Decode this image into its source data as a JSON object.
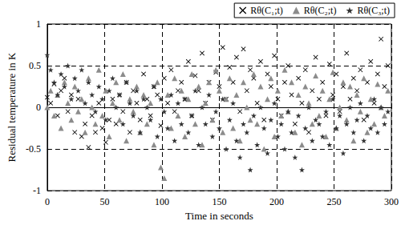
{
  "chart_data": {
    "type": "scatter",
    "x_label": "Time in seconds",
    "y_label": "Residual temperature in K",
    "xlim": [
      0,
      300
    ],
    "xticks": [
      0,
      50,
      100,
      150,
      200,
      250,
      300
    ],
    "ylim": [
      -1,
      1
    ],
    "yticks": [
      -1,
      -0.5,
      0,
      0.5,
      1
    ],
    "grid": true,
    "legend": "top right",
    "x": [
      0,
      3,
      6,
      9,
      12,
      15,
      18,
      21,
      24,
      27,
      30,
      33,
      36,
      39,
      42,
      45,
      48,
      51,
      54,
      57,
      60,
      63,
      66,
      69,
      72,
      75,
      78,
      81,
      84,
      87,
      90,
      93,
      96,
      99,
      102,
      105,
      108,
      111,
      114,
      117,
      120,
      123,
      126,
      129,
      132,
      135,
      138,
      141,
      144,
      147,
      150,
      153,
      156,
      159,
      162,
      165,
      168,
      171,
      174,
      177,
      180,
      183,
      186,
      189,
      192,
      195,
      198,
      201,
      204,
      207,
      210,
      213,
      216,
      219,
      222,
      225,
      228,
      231,
      234,
      237,
      240,
      243,
      246,
      249,
      252,
      255,
      258,
      261,
      264,
      267,
      270,
      273,
      276,
      279,
      282,
      285,
      288,
      291,
      294,
      297
    ],
    "series": [
      {
        "name": "Rθ(C₁;t)",
        "color": "#000000",
        "marker": "x",
        "values": [
          0.12,
          0.05,
          0.28,
          -0.1,
          0.2,
          0.35,
          -0.05,
          0.15,
          -0.3,
          0.1,
          -0.35,
          -0.2,
          -0.48,
          -0.1,
          -0.3,
          0.05,
          -0.25,
          -0.42,
          -0.15,
          0.1,
          -0.2,
          0.15,
          -0.05,
          0.3,
          -0.3,
          0.2,
          0.05,
          -0.15,
          0.4,
          0.1,
          -0.1,
          0.25,
          0.15,
          -0.22,
          0.35,
          0.05,
          0.45,
          -0.05,
          0.2,
          0.3,
          0.1,
          0.55,
          -0.1,
          0.38,
          0.2,
          0.65,
          0.05,
          0.3,
          -0.15,
          0.42,
          0.25,
          0.72,
          0.1,
          0.48,
          0.3,
          0.6,
          -0.05,
          0.7,
          0.2,
          0.45,
          0.35,
          0.05,
          0.55,
          -0.15,
          0.4,
          0.25,
          0.62,
          0.1,
          -0.1,
          0.3,
          0.5,
          0.15,
          -0.2,
          0.35,
          0.05,
          0.45,
          -0.3,
          0.2,
          0.6,
          0.1,
          0.3,
          -0.1,
          0.52,
          0.15,
          0.4,
          -0.05,
          0.25,
          0.65,
          0.1,
          0.35,
          0.2,
          0.45,
          -0.15,
          0.3,
          0.55,
          0.05,
          0.4,
          0.82,
          0.25,
          0.5
        ]
      },
      {
        "name": "Rθ(C₂;t)",
        "color": "#8c8c8c",
        "marker": "triangle",
        "values": [
          0.0,
          0.2,
          -0.1,
          0.15,
          -0.25,
          0.3,
          0.05,
          -0.15,
          0.25,
          -0.05,
          0.1,
          -0.3,
          0.35,
          0.0,
          -0.2,
          0.45,
          -0.1,
          0.2,
          -0.35,
          0.05,
          0.3,
          -0.15,
          0.4,
          -0.4,
          0.1,
          -0.05,
          0.25,
          -0.3,
          0.15,
          -0.2,
          0.05,
          -0.45,
          0.3,
          -0.72,
          -0.85,
          0.15,
          -0.25,
          0.35,
          -0.1,
          0.2,
          -0.35,
          0.1,
          0.4,
          -0.2,
          0.25,
          -0.45,
          0.05,
          0.3,
          -0.15,
          0.45,
          0.2,
          -0.3,
          0.1,
          0.35,
          -0.25,
          0.15,
          -0.4,
          0.3,
          0.0,
          -0.15,
          0.4,
          -0.2,
          0.25,
          -0.5,
          0.1,
          0.35,
          -0.35,
          0.2,
          -0.1,
          0.45,
          -0.05,
          0.3,
          -0.3,
          0.15,
          -0.45,
          0.25,
          0.05,
          -0.2,
          0.38,
          -0.1,
          0.2,
          -0.35,
          0.1,
          0.42,
          -0.25,
          0.0,
          0.3,
          -0.15,
          0.25,
          -0.4,
          0.15,
          -0.05,
          0.35,
          -0.3,
          0.1,
          -0.2,
          0.28,
          0.0,
          -0.1,
          0.2
        ]
      },
      {
        "name": "Rθ(C₃;t)",
        "color": "#333333",
        "marker": "star",
        "values": [
          0.63,
          0.45,
          0.3,
          0.15,
          0.4,
          0.25,
          0.5,
          0.1,
          0.35,
          0.2,
          0.45,
          0.05,
          0.3,
          0.15,
          -0.05,
          0.25,
          0.1,
          -0.15,
          0.2,
          0.35,
          0.0,
          0.15,
          -0.2,
          0.3,
          0.05,
          -0.1,
          0.2,
          -0.3,
          0.1,
          0.0,
          -0.15,
          0.25,
          -0.35,
          0.1,
          -0.05,
          -0.25,
          0.15,
          -0.4,
          0.05,
          -0.2,
          0.1,
          -0.3,
          -0.1,
          0.2,
          -0.45,
          0.0,
          -0.2,
          0.15,
          -0.35,
          -0.05,
          -0.25,
          0.1,
          -0.5,
          -0.15,
          0.05,
          -0.4,
          -0.6,
          -0.2,
          -0.3,
          -0.75,
          -0.1,
          -0.45,
          0.0,
          -0.25,
          -0.55,
          -0.15,
          0.05,
          -0.35,
          -0.2,
          -0.5,
          -0.05,
          -0.3,
          -0.6,
          -0.1,
          -0.75,
          -0.25,
          0.0,
          -0.4,
          -0.15,
          -0.2,
          -0.35,
          -0.05,
          -0.45,
          0.1,
          -0.25,
          -0.1,
          -0.55,
          -0.2,
          0.0,
          -0.3,
          -0.15,
          0.05,
          -0.4,
          -0.1,
          -0.25,
          0.1,
          -0.3,
          0.0,
          -0.2,
          -0.05
        ]
      }
    ]
  }
}
